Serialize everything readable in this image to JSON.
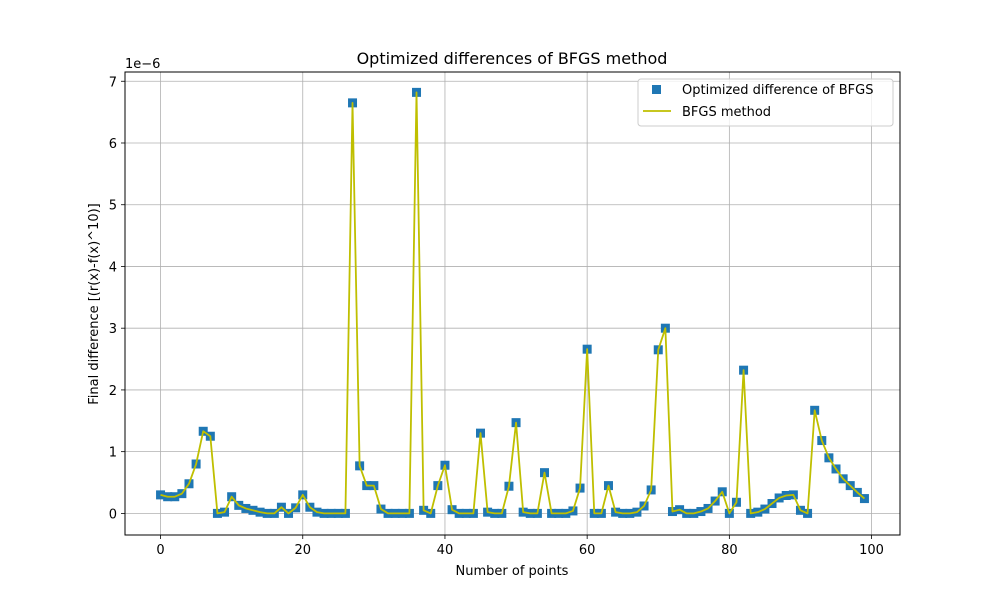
{
  "chart_data": {
    "type": "line",
    "title": "Optimized differences of BFGS method",
    "xlabel": "Number of points",
    "ylabel": "Final difference [(r(x)-f(x)^10)]",
    "y_offset_text": "1e−6",
    "xlim": [
      -5,
      104
    ],
    "ylim": [
      -0.35,
      7.15
    ],
    "x_ticks": [
      0,
      20,
      40,
      60,
      80,
      100
    ],
    "y_ticks": [
      0,
      1,
      2,
      3,
      4,
      5,
      6,
      7
    ],
    "grid": true,
    "legend_position": "top-right",
    "x": [
      0,
      1,
      2,
      3,
      4,
      5,
      6,
      7,
      8,
      9,
      10,
      11,
      12,
      13,
      14,
      15,
      16,
      17,
      18,
      19,
      20,
      21,
      22,
      23,
      24,
      25,
      26,
      27,
      28,
      29,
      30,
      31,
      32,
      33,
      34,
      35,
      36,
      37,
      38,
      39,
      40,
      41,
      42,
      43,
      44,
      45,
      46,
      47,
      48,
      49,
      50,
      51,
      52,
      53,
      54,
      55,
      56,
      57,
      58,
      59,
      60,
      61,
      62,
      63,
      64,
      65,
      66,
      67,
      68,
      69,
      70,
      71,
      72,
      73,
      74,
      75,
      76,
      77,
      78,
      79,
      80,
      81,
      82,
      83,
      84,
      85,
      86,
      87,
      88,
      89,
      90,
      91,
      92,
      93,
      94,
      95,
      96,
      97,
      98,
      99
    ],
    "series": [
      {
        "name": "Optimized difference of BFGS",
        "style": "markers",
        "marker": "square",
        "color": "#1f77b4",
        "values": [
          0.3,
          0.27,
          0.27,
          0.32,
          0.48,
          0.8,
          1.33,
          1.25,
          0.0,
          0.02,
          0.27,
          0.13,
          0.08,
          0.05,
          0.02,
          0.0,
          0.0,
          0.1,
          0.0,
          0.09,
          0.3,
          0.1,
          0.02,
          0.0,
          0.0,
          0.0,
          0.0,
          6.65,
          0.77,
          0.45,
          0.45,
          0.07,
          0.0,
          0.0,
          0.0,
          0.0,
          6.82,
          0.05,
          0.0,
          0.45,
          0.78,
          0.06,
          0.0,
          0.0,
          0.0,
          1.3,
          0.02,
          0.0,
          0.0,
          0.44,
          1.47,
          0.02,
          0.0,
          0.0,
          0.66,
          0.0,
          0.0,
          0.0,
          0.04,
          0.41,
          2.66,
          0.0,
          0.0,
          0.45,
          0.02,
          0.0,
          0.0,
          0.02,
          0.12,
          0.38,
          2.65,
          3.0,
          0.03,
          0.06,
          0.0,
          0.0,
          0.03,
          0.08,
          0.2,
          0.35,
          0.0,
          0.18,
          2.32,
          0.0,
          0.02,
          0.07,
          0.16,
          0.25,
          0.29,
          0.3,
          0.05,
          0.0,
          1.67,
          1.18,
          0.9,
          0.72,
          0.56,
          0.45,
          0.34,
          0.24
        ]
      },
      {
        "name": "BFGS method",
        "style": "line",
        "color": "#bfbf00",
        "values": [
          0.3,
          0.27,
          0.27,
          0.32,
          0.48,
          0.8,
          1.33,
          1.25,
          0.0,
          0.02,
          0.27,
          0.13,
          0.08,
          0.05,
          0.02,
          0.0,
          0.0,
          0.1,
          0.0,
          0.09,
          0.3,
          0.1,
          0.02,
          0.0,
          0.0,
          0.0,
          0.0,
          6.65,
          0.77,
          0.45,
          0.45,
          0.07,
          0.0,
          0.0,
          0.0,
          0.0,
          6.82,
          0.05,
          0.0,
          0.45,
          0.78,
          0.06,
          0.0,
          0.0,
          0.0,
          1.3,
          0.02,
          0.0,
          0.0,
          0.44,
          1.47,
          0.02,
          0.0,
          0.0,
          0.66,
          0.0,
          0.0,
          0.0,
          0.04,
          0.41,
          2.66,
          0.0,
          0.0,
          0.45,
          0.02,
          0.0,
          0.0,
          0.02,
          0.12,
          0.38,
          2.65,
          3.0,
          0.03,
          0.06,
          0.0,
          0.0,
          0.03,
          0.08,
          0.2,
          0.35,
          0.0,
          0.18,
          2.32,
          0.0,
          0.02,
          0.07,
          0.16,
          0.25,
          0.29,
          0.3,
          0.05,
          0.0,
          1.67,
          1.18,
          0.9,
          0.72,
          0.56,
          0.45,
          0.34,
          0.24
        ]
      }
    ]
  }
}
